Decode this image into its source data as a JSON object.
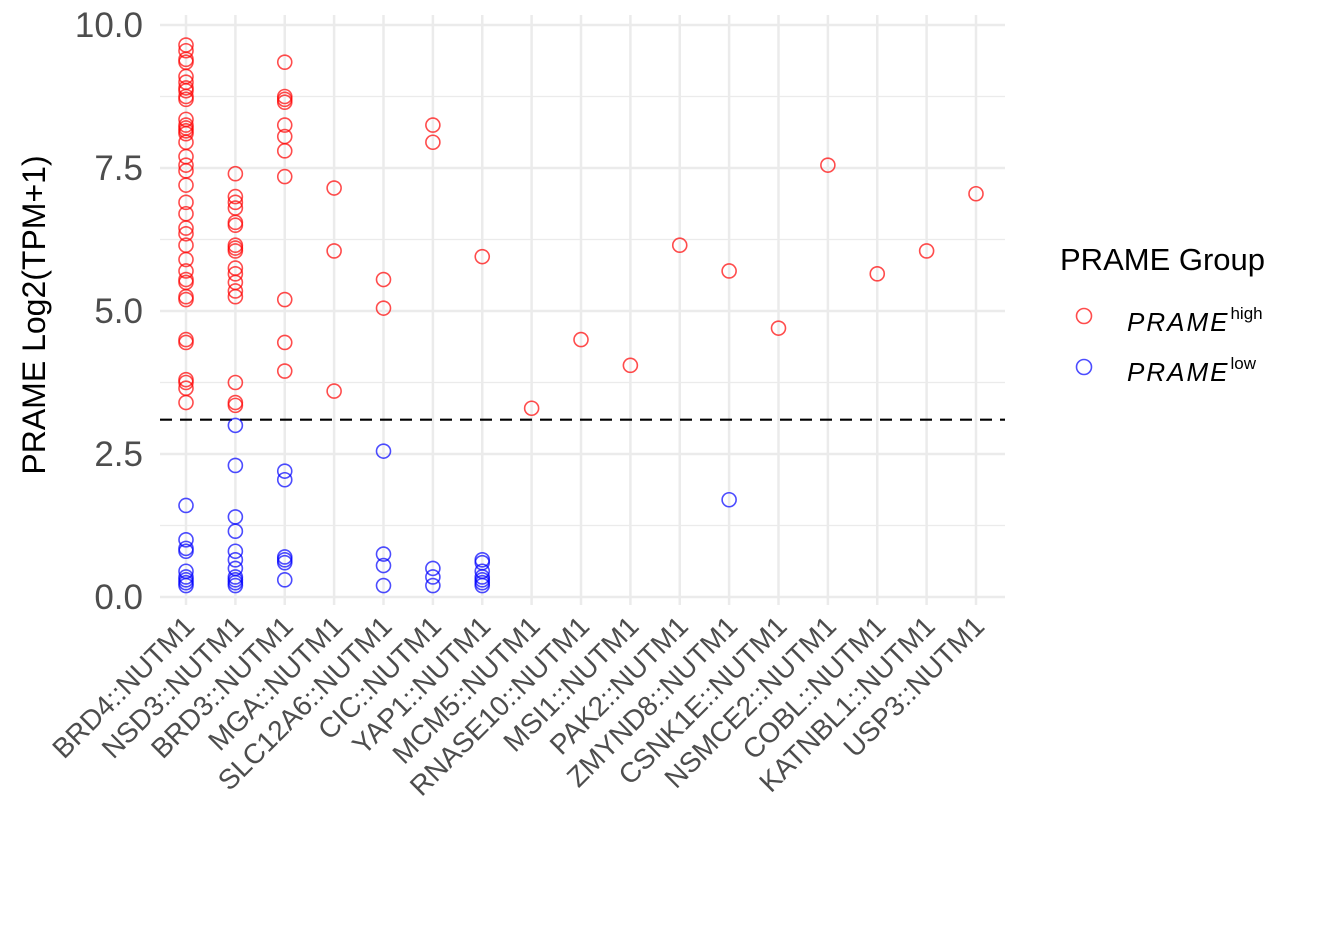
{
  "chart_data": {
    "type": "scatter",
    "title": "",
    "xlabel": "",
    "ylabel": "PRAME Log2(TPM+1)",
    "ylim": [
      0,
      10
    ],
    "y_ticks": [
      "0.0",
      "2.5",
      "5.0",
      "7.5",
      "10.0"
    ],
    "y_tick_values": [
      0,
      2.5,
      5,
      7.5,
      10
    ],
    "threshold": 3.1,
    "grid": true,
    "legend_position": "right",
    "categories": [
      "BRD4::NUTM1",
      "NSD3::NUTM1",
      "BRD3::NUTM1",
      "MGA::NUTM1",
      "SLC12A6::NUTM1",
      "CIC::NUTM1",
      "YAP1::NUTM1",
      "MCM5::NUTM1",
      "RNASE10::NUTM1",
      "MSI1::NUTM1",
      "PAK2::NUTM1",
      "ZMYND8::NUTM1",
      "CSNK1E::NUTM1",
      "NSMCE2::NUTM1",
      "COBL::NUTM1",
      "KATNBL1::NUTM1",
      "USP3::NUTM1"
    ],
    "legend": {
      "title": "PRAME Group",
      "items": [
        {
          "base": "PRAME",
          "sup": "high",
          "color": "#ff0000"
        },
        {
          "base": "PRAME",
          "sup": "low",
          "color": "#0000ff"
        }
      ]
    },
    "series": [
      {
        "color": "#ff0000",
        "points": [
          [
            "BRD4::NUTM1",
            9.65
          ],
          [
            "BRD4::NUTM1",
            9.55
          ],
          [
            "BRD4::NUTM1",
            9.4
          ],
          [
            "BRD4::NUTM1",
            9.35
          ],
          [
            "BRD4::NUTM1",
            9.1
          ],
          [
            "BRD4::NUTM1",
            9.0
          ],
          [
            "BRD4::NUTM1",
            8.9
          ],
          [
            "BRD4::NUTM1",
            8.85
          ],
          [
            "BRD4::NUTM1",
            8.75
          ],
          [
            "BRD4::NUTM1",
            8.7
          ],
          [
            "BRD4::NUTM1",
            8.35
          ],
          [
            "BRD4::NUTM1",
            8.25
          ],
          [
            "BRD4::NUTM1",
            8.2
          ],
          [
            "BRD4::NUTM1",
            8.15
          ],
          [
            "BRD4::NUTM1",
            8.1
          ],
          [
            "BRD4::NUTM1",
            7.95
          ],
          [
            "BRD4::NUTM1",
            7.7
          ],
          [
            "BRD4::NUTM1",
            7.55
          ],
          [
            "BRD4::NUTM1",
            7.45
          ],
          [
            "BRD4::NUTM1",
            7.2
          ],
          [
            "BRD4::NUTM1",
            6.9
          ],
          [
            "BRD4::NUTM1",
            6.7
          ],
          [
            "BRD4::NUTM1",
            6.45
          ],
          [
            "BRD4::NUTM1",
            6.35
          ],
          [
            "BRD4::NUTM1",
            6.15
          ],
          [
            "BRD4::NUTM1",
            5.9
          ],
          [
            "BRD4::NUTM1",
            5.7
          ],
          [
            "BRD4::NUTM1",
            5.55
          ],
          [
            "BRD4::NUTM1",
            5.5
          ],
          [
            "BRD4::NUTM1",
            5.25
          ],
          [
            "BRD4::NUTM1",
            5.2
          ],
          [
            "BRD4::NUTM1",
            4.5
          ],
          [
            "BRD4::NUTM1",
            4.45
          ],
          [
            "BRD4::NUTM1",
            3.8
          ],
          [
            "BRD4::NUTM1",
            3.75
          ],
          [
            "BRD4::NUTM1",
            3.65
          ],
          [
            "BRD4::NUTM1",
            3.4
          ],
          [
            "NSD3::NUTM1",
            7.4
          ],
          [
            "NSD3::NUTM1",
            7.0
          ],
          [
            "NSD3::NUTM1",
            6.9
          ],
          [
            "NSD3::NUTM1",
            6.8
          ],
          [
            "NSD3::NUTM1",
            6.55
          ],
          [
            "NSD3::NUTM1",
            6.5
          ],
          [
            "NSD3::NUTM1",
            6.15
          ],
          [
            "NSD3::NUTM1",
            6.1
          ],
          [
            "NSD3::NUTM1",
            6.05
          ],
          [
            "NSD3::NUTM1",
            5.75
          ],
          [
            "NSD3::NUTM1",
            5.65
          ],
          [
            "NSD3::NUTM1",
            5.5
          ],
          [
            "NSD3::NUTM1",
            5.35
          ],
          [
            "NSD3::NUTM1",
            5.25
          ],
          [
            "NSD3::NUTM1",
            3.75
          ],
          [
            "NSD3::NUTM1",
            3.4
          ],
          [
            "NSD3::NUTM1",
            3.35
          ],
          [
            "BRD3::NUTM1",
            9.35
          ],
          [
            "BRD3::NUTM1",
            8.75
          ],
          [
            "BRD3::NUTM1",
            8.7
          ],
          [
            "BRD3::NUTM1",
            8.65
          ],
          [
            "BRD3::NUTM1",
            8.25
          ],
          [
            "BRD3::NUTM1",
            8.05
          ],
          [
            "BRD3::NUTM1",
            7.8
          ],
          [
            "BRD3::NUTM1",
            7.35
          ],
          [
            "BRD3::NUTM1",
            5.2
          ],
          [
            "BRD3::NUTM1",
            4.45
          ],
          [
            "BRD3::NUTM1",
            3.95
          ],
          [
            "MGA::NUTM1",
            7.15
          ],
          [
            "MGA::NUTM1",
            6.05
          ],
          [
            "MGA::NUTM1",
            3.6
          ],
          [
            "SLC12A6::NUTM1",
            5.55
          ],
          [
            "SLC12A6::NUTM1",
            5.05
          ],
          [
            "CIC::NUTM1",
            8.25
          ],
          [
            "CIC::NUTM1",
            7.95
          ],
          [
            "YAP1::NUTM1",
            5.95
          ],
          [
            "MCM5::NUTM1",
            3.3
          ],
          [
            "RNASE10::NUTM1",
            4.5
          ],
          [
            "MSI1::NUTM1",
            4.05
          ],
          [
            "PAK2::NUTM1",
            6.15
          ],
          [
            "ZMYND8::NUTM1",
            5.7
          ],
          [
            "CSNK1E::NUTM1",
            4.7
          ],
          [
            "NSMCE2::NUTM1",
            7.55
          ],
          [
            "COBL::NUTM1",
            5.65
          ],
          [
            "KATNBL1::NUTM1",
            6.05
          ],
          [
            "USP3::NUTM1",
            7.05
          ]
        ]
      },
      {
        "color": "#0000ff",
        "points": [
          [
            "BRD4::NUTM1",
            1.6
          ],
          [
            "BRD4::NUTM1",
            1.0
          ],
          [
            "BRD4::NUTM1",
            0.85
          ],
          [
            "BRD4::NUTM1",
            0.8
          ],
          [
            "BRD4::NUTM1",
            0.45
          ],
          [
            "BRD4::NUTM1",
            0.35
          ],
          [
            "BRD4::NUTM1",
            0.3
          ],
          [
            "BRD4::NUTM1",
            0.25
          ],
          [
            "BRD4::NUTM1",
            0.2
          ],
          [
            "NSD3::NUTM1",
            3.0
          ],
          [
            "NSD3::NUTM1",
            2.3
          ],
          [
            "NSD3::NUTM1",
            1.4
          ],
          [
            "NSD3::NUTM1",
            1.15
          ],
          [
            "NSD3::NUTM1",
            0.8
          ],
          [
            "NSD3::NUTM1",
            0.65
          ],
          [
            "NSD3::NUTM1",
            0.5
          ],
          [
            "NSD3::NUTM1",
            0.35
          ],
          [
            "NSD3::NUTM1",
            0.3
          ],
          [
            "NSD3::NUTM1",
            0.25
          ],
          [
            "NSD3::NUTM1",
            0.2
          ],
          [
            "BRD3::NUTM1",
            2.2
          ],
          [
            "BRD3::NUTM1",
            2.05
          ],
          [
            "BRD3::NUTM1",
            0.7
          ],
          [
            "BRD3::NUTM1",
            0.65
          ],
          [
            "BRD3::NUTM1",
            0.6
          ],
          [
            "BRD3::NUTM1",
            0.3
          ],
          [
            "SLC12A6::NUTM1",
            2.55
          ],
          [
            "SLC12A6::NUTM1",
            0.75
          ],
          [
            "SLC12A6::NUTM1",
            0.55
          ],
          [
            "SLC12A6::NUTM1",
            0.2
          ],
          [
            "CIC::NUTM1",
            0.5
          ],
          [
            "CIC::NUTM1",
            0.35
          ],
          [
            "CIC::NUTM1",
            0.2
          ],
          [
            "YAP1::NUTM1",
            0.65
          ],
          [
            "YAP1::NUTM1",
            0.6
          ],
          [
            "YAP1::NUTM1",
            0.45
          ],
          [
            "YAP1::NUTM1",
            0.35
          ],
          [
            "YAP1::NUTM1",
            0.3
          ],
          [
            "YAP1::NUTM1",
            0.25
          ],
          [
            "YAP1::NUTM1",
            0.2
          ],
          [
            "ZMYND8::NUTM1",
            1.7
          ]
        ]
      }
    ]
  }
}
